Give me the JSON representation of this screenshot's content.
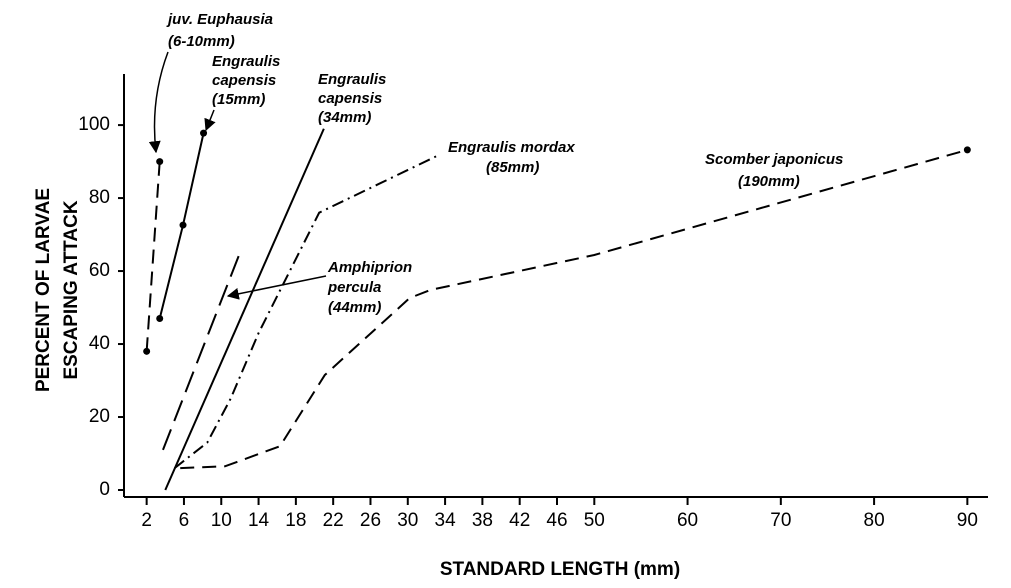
{
  "chart_data": {
    "type": "line",
    "xlabel": "STANDARD LENGTH (mm)",
    "ylabel_lines": [
      "PERCENT OF LARVAE",
      "ESCAPING ATTACK"
    ],
    "xlim": [
      0,
      92
    ],
    "ylim": [
      0,
      114
    ],
    "xticks": [
      2,
      6,
      10,
      14,
      18,
      22,
      26,
      30,
      34,
      38,
      42,
      46,
      50,
      60,
      70,
      80,
      90
    ],
    "yticks": [
      0,
      20,
      40,
      60,
      80,
      100
    ],
    "series": [
      {
        "label_lines": [
          "juv. Euphausia",
          "(6-10mm)"
        ],
        "color": "#000000",
        "dash": "dashed",
        "markers": true,
        "x": [
          2,
          3.4
        ],
        "values": [
          38,
          90
        ]
      },
      {
        "label_lines": [
          "Engraulis",
          "capensis",
          "(15mm)"
        ],
        "color": "#000000",
        "dash": "solid",
        "markers": true,
        "x": [
          3.4,
          5.9,
          8.1
        ],
        "values": [
          47,
          72.6,
          97.8
        ]
      },
      {
        "label_lines": [
          "Engraulis",
          "capensis",
          "(34mm)"
        ],
        "color": "#000000",
        "dash": "solid",
        "markers": false,
        "x": [
          4,
          21
        ],
        "values": [
          0,
          99
        ]
      },
      {
        "label_lines": [
          "Amphiprion",
          "percula",
          "(44mm)"
        ],
        "color": "#000000",
        "dash": "longdash",
        "markers": false,
        "x": [
          3.75,
          12
        ],
        "values": [
          11,
          65
        ]
      },
      {
        "label_lines": [
          "Engraulis mordax",
          "(85mm)"
        ],
        "color": "#000000",
        "dash": "dashdot",
        "markers": false,
        "x": [
          5,
          8.5,
          11,
          14,
          20.5,
          33.5
        ],
        "values": [
          6,
          13,
          25,
          43,
          76,
          92
        ]
      },
      {
        "label_lines": [
          "Scomber japonicus",
          "(190mm)"
        ],
        "color": "#000000",
        "dash": "dashed",
        "markers": "last",
        "x": [
          5.6,
          10.4,
          16.3,
          21.1,
          30.2,
          32.4,
          50,
          90
        ],
        "values": [
          6,
          6.5,
          12,
          31.5,
          52.6,
          54.8,
          64.4,
          93.2
        ]
      }
    ]
  }
}
